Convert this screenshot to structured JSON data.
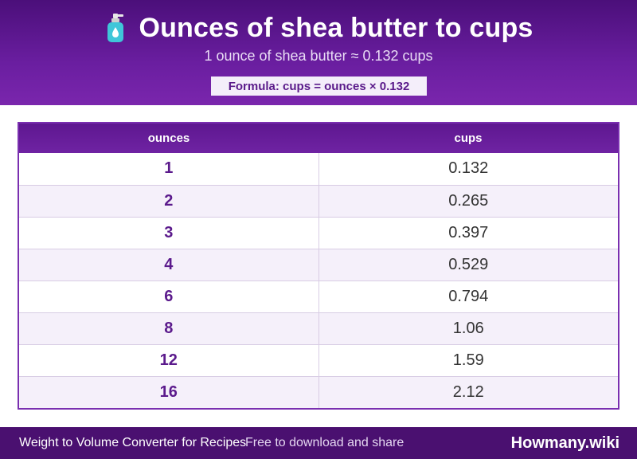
{
  "header": {
    "title": "Ounces of shea butter to cups",
    "icon": "lotion-bottle-icon",
    "subtitle": "1 ounce of shea butter ≈ 0.132 cups",
    "formula": "Formula: cups = ounces × 0.132"
  },
  "table": {
    "columns": [
      "ounces",
      "cups"
    ],
    "rows": [
      {
        "ounces": "1",
        "cups": "0.132"
      },
      {
        "ounces": "2",
        "cups": "0.265"
      },
      {
        "ounces": "3",
        "cups": "0.397"
      },
      {
        "ounces": "4",
        "cups": "0.529"
      },
      {
        "ounces": "6",
        "cups": "0.794"
      },
      {
        "ounces": "8",
        "cups": "1.06"
      },
      {
        "ounces": "12",
        "cups": "1.59"
      },
      {
        "ounces": "16",
        "cups": "2.12"
      }
    ]
  },
  "footer": {
    "left": "Weight to Volume Converter for Recipes",
    "middle": "Free to download and share",
    "brand": "Howmany.wiki"
  },
  "colors": {
    "header_bg": "#6a1ea0",
    "accent": "#5b1a8c",
    "footer_bg": "#4a1070",
    "row_alt": "#f5f0fa"
  }
}
